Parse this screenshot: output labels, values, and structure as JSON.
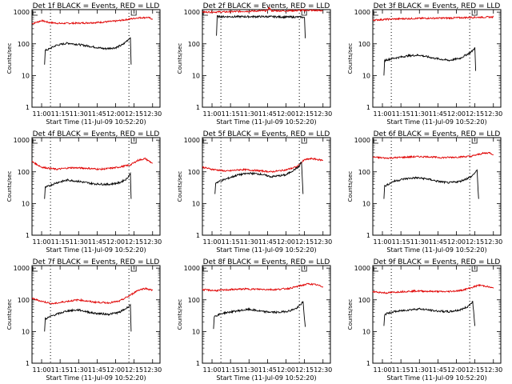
{
  "figure": {
    "charts": [
      {
        "id": "1f",
        "title": "Det 1f BLACK = Events, RED = LLD",
        "ylabel": "Counts/sec",
        "xlabel": "Start Time (11-Jul-09 10:52:20)",
        "red": [
          [
            10.87,
            430
          ],
          [
            11.0,
            540
          ],
          [
            11.1,
            470
          ],
          [
            11.25,
            440
          ],
          [
            11.5,
            450
          ],
          [
            11.75,
            470
          ],
          [
            12.0,
            520
          ],
          [
            12.1,
            560
          ],
          [
            12.3,
            660
          ],
          [
            12.43,
            680
          ],
          [
            12.5,
            610
          ]
        ],
        "black": [
          [
            11.04,
            22
          ],
          [
            11.05,
            62
          ],
          [
            11.08,
            65
          ],
          [
            11.2,
            90
          ],
          [
            11.35,
            105
          ],
          [
            11.5,
            95
          ],
          [
            11.7,
            80
          ],
          [
            11.85,
            70
          ],
          [
            12.0,
            75
          ],
          [
            12.1,
            95
          ],
          [
            12.2,
            160
          ],
          [
            12.21,
            22
          ]
        ]
      },
      {
        "id": "2f",
        "title": "Det 2f BLACK = Events, RED = LLD",
        "ylabel": "Counts/sec",
        "xlabel": "Start Time (11-Jul-09 10:52:20)",
        "red": [
          [
            10.87,
            1000
          ],
          [
            11.2,
            1020
          ],
          [
            11.5,
            1070
          ],
          [
            11.75,
            1110
          ],
          [
            11.77,
            1450
          ],
          [
            11.8,
            1100
          ],
          [
            12.0,
            1100
          ],
          [
            12.3,
            1140
          ],
          [
            12.5,
            1120
          ]
        ],
        "black": [
          [
            11.06,
            180
          ],
          [
            11.07,
            720
          ],
          [
            11.3,
            720
          ],
          [
            11.5,
            720
          ],
          [
            11.75,
            720
          ],
          [
            12.0,
            700
          ],
          [
            12.2,
            700
          ],
          [
            12.25,
            680
          ],
          [
            12.26,
            150
          ]
        ]
      },
      {
        "id": "3f",
        "title": "Det 3f BLACK = Events, RED = LLD",
        "ylabel": "Counts/sec",
        "xlabel": "Start Time (11-Jul-09 10:52:20)",
        "red": [
          [
            10.87,
            560
          ],
          [
            11.1,
            600
          ],
          [
            11.3,
            620
          ],
          [
            11.6,
            640
          ],
          [
            11.9,
            650
          ],
          [
            12.2,
            680
          ],
          [
            12.5,
            700
          ]
        ],
        "black": [
          [
            11.02,
            10
          ],
          [
            11.03,
            30
          ],
          [
            11.15,
            35
          ],
          [
            11.35,
            42
          ],
          [
            11.5,
            44
          ],
          [
            11.7,
            35
          ],
          [
            11.9,
            30
          ],
          [
            12.05,
            35
          ],
          [
            12.2,
            55
          ],
          [
            12.25,
            75
          ],
          [
            12.26,
            14
          ]
        ]
      },
      {
        "id": "4f",
        "title": "Det 4f BLACK = Events, RED = LLD",
        "ylabel": "Counts/sec",
        "xlabel": "Start Time (11-Jul-09 10:52:20)",
        "red": [
          [
            10.87,
            210
          ],
          [
            11.0,
            140
          ],
          [
            11.2,
            120
          ],
          [
            11.4,
            135
          ],
          [
            11.6,
            130
          ],
          [
            11.8,
            120
          ],
          [
            12.0,
            135
          ],
          [
            12.2,
            165
          ],
          [
            12.3,
            230
          ],
          [
            12.4,
            260
          ],
          [
            12.5,
            185
          ]
        ],
        "black": [
          [
            11.04,
            14
          ],
          [
            11.05,
            32
          ],
          [
            11.2,
            45
          ],
          [
            11.35,
            55
          ],
          [
            11.5,
            50
          ],
          [
            11.7,
            42
          ],
          [
            11.9,
            40
          ],
          [
            12.05,
            45
          ],
          [
            12.15,
            60
          ],
          [
            12.2,
            90
          ],
          [
            12.21,
            14
          ]
        ]
      },
      {
        "id": "5f",
        "title": "Det 5f BLACK = Events, RED = LLD",
        "ylabel": "Counts/sec",
        "xlabel": "Start Time (11-Jul-09 10:52:20)",
        "red": [
          [
            10.87,
            140
          ],
          [
            11.0,
            120
          ],
          [
            11.2,
            105
          ],
          [
            11.4,
            118
          ],
          [
            11.6,
            110
          ],
          [
            11.8,
            100
          ],
          [
            12.0,
            115
          ],
          [
            12.15,
            145
          ],
          [
            12.25,
            240
          ],
          [
            12.35,
            260
          ],
          [
            12.5,
            230
          ]
        ],
        "black": [
          [
            11.04,
            20
          ],
          [
            11.05,
            45
          ],
          [
            11.15,
            55
          ],
          [
            11.35,
            80
          ],
          [
            11.5,
            90
          ],
          [
            11.65,
            85
          ],
          [
            11.8,
            70
          ],
          [
            12.0,
            80
          ],
          [
            12.12,
            120
          ],
          [
            12.18,
            150
          ],
          [
            12.2,
            200
          ],
          [
            12.21,
            200
          ],
          [
            12.23,
            20
          ]
        ]
      },
      {
        "id": "6f",
        "title": "Det 6f BLACK = Events, RED = LLD",
        "ylabel": "Counts/sec",
        "xlabel": "Start Time (11-Jul-09 10:52:20)",
        "red": [
          [
            10.87,
            290
          ],
          [
            11.05,
            270
          ],
          [
            11.25,
            285
          ],
          [
            11.45,
            300
          ],
          [
            11.6,
            300
          ],
          [
            11.8,
            280
          ],
          [
            12.0,
            290
          ],
          [
            12.2,
            310
          ],
          [
            12.35,
            380
          ],
          [
            12.45,
            400
          ],
          [
            12.5,
            350
          ]
        ],
        "black": [
          [
            11.02,
            14
          ],
          [
            11.03,
            35
          ],
          [
            11.15,
            50
          ],
          [
            11.3,
            60
          ],
          [
            11.45,
            65
          ],
          [
            11.6,
            60
          ],
          [
            11.75,
            50
          ],
          [
            11.9,
            45
          ],
          [
            12.05,
            50
          ],
          [
            12.2,
            70
          ],
          [
            12.28,
            110
          ],
          [
            12.3,
            14
          ]
        ]
      },
      {
        "id": "7f",
        "title": "Det 7f BLACK = Events, RED = LLD",
        "ylabel": "Counts/sec",
        "xlabel": "Start Time (11-Jul-09 10:52:20)",
        "red": [
          [
            10.87,
            110
          ],
          [
            11.0,
            90
          ],
          [
            11.15,
            75
          ],
          [
            11.35,
            90
          ],
          [
            11.5,
            100
          ],
          [
            11.7,
            85
          ],
          [
            11.9,
            80
          ],
          [
            12.05,
            90
          ],
          [
            12.2,
            140
          ],
          [
            12.3,
            200
          ],
          [
            12.4,
            230
          ],
          [
            12.5,
            200
          ]
        ],
        "black": [
          [
            11.04,
            10
          ],
          [
            11.05,
            25
          ],
          [
            11.15,
            32
          ],
          [
            11.35,
            45
          ],
          [
            11.5,
            48
          ],
          [
            11.7,
            38
          ],
          [
            11.9,
            35
          ],
          [
            12.05,
            40
          ],
          [
            12.15,
            55
          ],
          [
            12.2,
            70
          ],
          [
            12.21,
            10
          ]
        ]
      },
      {
        "id": "8f",
        "title": "Det 8f BLACK = Events, RED = LLD",
        "ylabel": "Counts/sec",
        "xlabel": "Start Time (11-Jul-09 10:52:20)",
        "red": [
          [
            10.87,
            210
          ],
          [
            11.05,
            195
          ],
          [
            11.25,
            210
          ],
          [
            11.45,
            220
          ],
          [
            11.65,
            215
          ],
          [
            11.85,
            210
          ],
          [
            12.05,
            230
          ],
          [
            12.2,
            280
          ],
          [
            12.3,
            320
          ],
          [
            12.4,
            300
          ],
          [
            12.5,
            260
          ]
        ],
        "black": [
          [
            11.02,
            12
          ],
          [
            11.03,
            30
          ],
          [
            11.15,
            38
          ],
          [
            11.35,
            45
          ],
          [
            11.5,
            50
          ],
          [
            11.7,
            42
          ],
          [
            11.9,
            40
          ],
          [
            12.05,
            45
          ],
          [
            12.15,
            55
          ],
          [
            12.23,
            85
          ],
          [
            12.26,
            14
          ]
        ]
      },
      {
        "id": "9f",
        "title": "Det 9f BLACK = Events, RED = LLD",
        "ylabel": "Counts/sec",
        "xlabel": "Start Time (11-Jul-09 10:52:20)",
        "red": [
          [
            10.87,
            180
          ],
          [
            11.05,
            165
          ],
          [
            11.25,
            180
          ],
          [
            11.45,
            190
          ],
          [
            11.65,
            185
          ],
          [
            11.85,
            180
          ],
          [
            12.05,
            195
          ],
          [
            12.2,
            240
          ],
          [
            12.3,
            290
          ],
          [
            12.4,
            270
          ],
          [
            12.5,
            230
          ]
        ],
        "black": [
          [
            11.02,
            15
          ],
          [
            11.03,
            35
          ],
          [
            11.15,
            42
          ],
          [
            11.35,
            48
          ],
          [
            11.5,
            52
          ],
          [
            11.7,
            45
          ],
          [
            11.9,
            42
          ],
          [
            12.05,
            48
          ],
          [
            12.15,
            60
          ],
          [
            12.22,
            88
          ],
          [
            12.25,
            15
          ]
        ]
      }
    ]
  },
  "chart_data": {
    "type": "line",
    "x_tick_labels": [
      "11:00",
      "11:15",
      "11:30",
      "11:45",
      "12:00",
      "12:15",
      "12:30"
    ],
    "x_ticks": [
      11.0,
      11.25,
      11.5,
      11.75,
      12.0,
      12.25,
      12.5
    ],
    "xlim": [
      10.87,
      12.6
    ],
    "y_tick_labels": [
      "1",
      "10",
      "100",
      "1000"
    ],
    "y_ticks": [
      1,
      10,
      100,
      1000
    ],
    "ylim": [
      1,
      1200
    ],
    "yscale": "log",
    "vlines": [
      11.12,
      12.18
    ],
    "series": [
      {
        "name": "BLACK = Events",
        "color": "#000000"
      },
      {
        "name": "RED = LLD",
        "color": "#e00000"
      }
    ]
  },
  "colors": {
    "events": "#000000",
    "lld": "#e00000"
  }
}
